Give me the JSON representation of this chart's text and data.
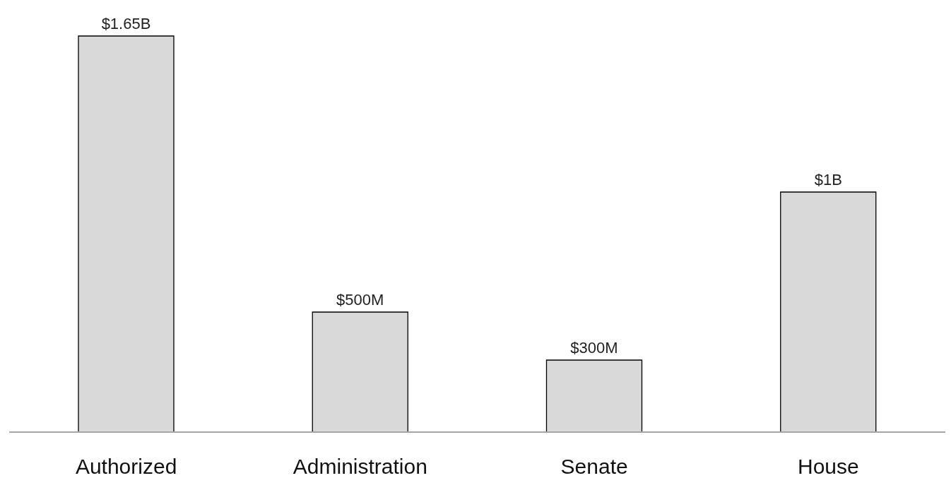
{
  "chart_data": {
    "type": "bar",
    "categories": [
      "Authorized",
      "Administration",
      "Senate",
      "House"
    ],
    "values": [
      1650000000,
      500000000,
      300000000,
      1000000000
    ],
    "value_labels": [
      "$1.65B",
      "$500M",
      "$300M",
      "$1B"
    ],
    "color": "#d9d9d9",
    "tick_labels": "x"
  }
}
